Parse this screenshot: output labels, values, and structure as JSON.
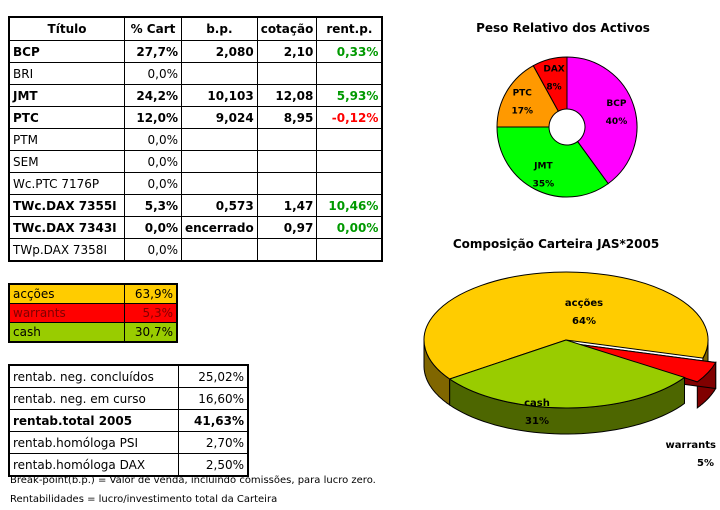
{
  "table": {
    "header": [
      "Título",
      "% Cart",
      "b.p.",
      "cotação",
      "rent.p."
    ],
    "rows": [
      [
        "BCP",
        "27,7%",
        "2,080",
        "2,10",
        "0,33%"
      ],
      [
        "BRI",
        "0,0%"
      ],
      [
        "JMT",
        "24,2%",
        "10,103",
        "12,08",
        "5,93%"
      ],
      [
        "PTC",
        "12,0%",
        "9,024",
        "8,95",
        "-0,12%"
      ],
      [
        "PTM",
        "0,0%"
      ],
      [
        "SEM",
        "0,0%"
      ],
      [
        "Wc.PTC 7176P",
        "0,0%"
      ],
      [
        "TWc.DAX 7355I",
        "5,3%",
        "0,573",
        "1,47",
        "10,46%"
      ],
      [
        "TWc.DAX 7343I",
        "0,0%",
        "encerrado",
        "0,97",
        "0,00%"
      ],
      [
        "TWp.DAX 7358I",
        "0,0%"
      ]
    ]
  },
  "allocation": {
    "rows": [
      [
        "acções",
        "63,9%"
      ],
      [
        "warrants",
        "5,3%"
      ],
      [
        "cash",
        "30,7%"
      ]
    ]
  },
  "summary": {
    "rows": [
      [
        "rentab. neg. concluídos",
        "25,02%"
      ],
      [
        "rentab. neg. em curso",
        "16,60%"
      ],
      [
        "rentab.total 2005",
        "41,63%"
      ],
      [
        "rentab.homóloga PSI",
        "2,70%"
      ],
      [
        "rentab.homóloga DAX",
        "2,50%"
      ]
    ]
  },
  "notes": [
    "Break-point(b.p.) = Valor de venda, incluindo comissões, para lucro zero.",
    "Rentabilidades = lucro/investimento total da Carteira"
  ],
  "chart_data": [
    {
      "type": "doughnut",
      "title": "Peso Relativo dos Activos",
      "categories": [
        "BCP",
        "JMT",
        "PTC",
        "DAX"
      ],
      "values": [
        40,
        35,
        17,
        8
      ],
      "value_labels": [
        "40%",
        "35%",
        "17%",
        "8%"
      ],
      "colors": [
        "#ff00ff",
        "#00ff00",
        "#ff9900",
        "#ff0000"
      ]
    },
    {
      "type": "pie3d",
      "title": "Composição Carteira JAS*2005",
      "categories": [
        "acções",
        "warrants",
        "cash"
      ],
      "values": [
        64,
        5,
        31
      ],
      "value_labels": [
        "64%",
        "5%",
        "31%"
      ],
      "colors": [
        "#ffcc00",
        "#ff0000",
        "#99cc00"
      ]
    }
  ]
}
